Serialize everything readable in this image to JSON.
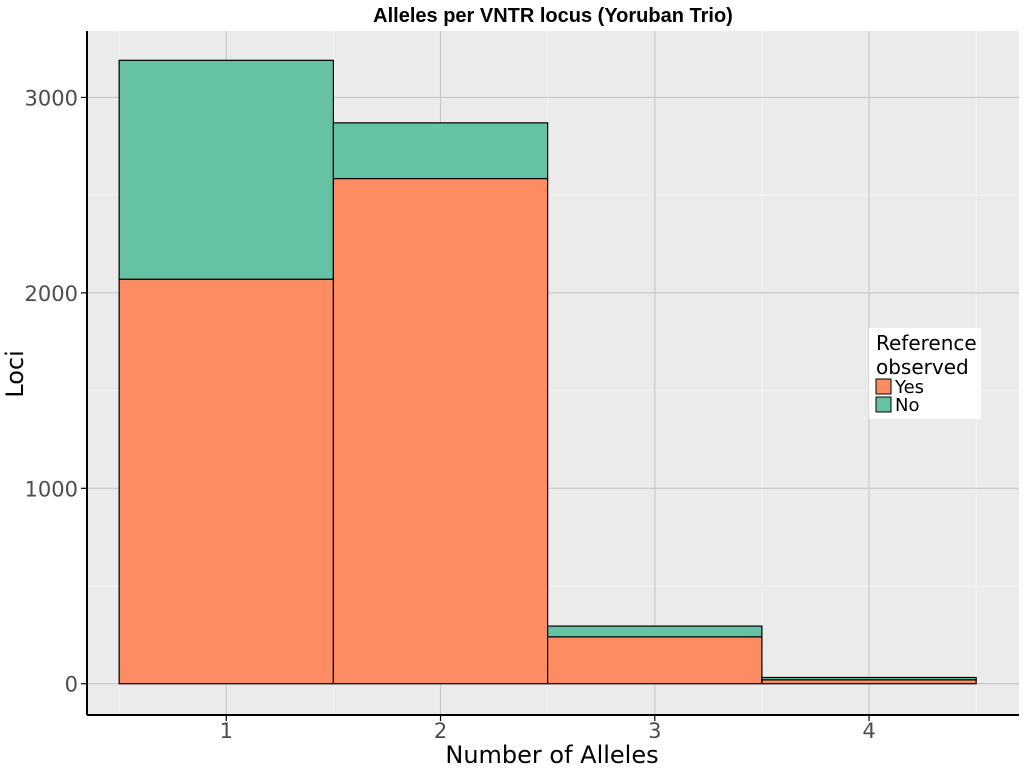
{
  "chart_data": {
    "type": "bar",
    "stacked": true,
    "title": "Alleles per VNTR locus (Yoruban Trio)",
    "xlabel": "Number of Alleles",
    "ylabel": "Loci",
    "categories": [
      "1",
      "2",
      "3",
      "4"
    ],
    "x_ticks": [
      "1",
      "2",
      "3",
      "4"
    ],
    "y_ticks": [
      "0",
      "1000",
      "2000",
      "3000"
    ],
    "xlim": [
      0.35,
      4.7
    ],
    "ylim": [
      -160,
      3340
    ],
    "grid": true,
    "legend": {
      "title_lines": [
        "Reference",
        "observed"
      ],
      "position": "right",
      "entries": [
        "Yes",
        "No"
      ]
    },
    "series": [
      {
        "name": "Yes",
        "color": "#fc8d62",
        "values": [
          2070,
          2585,
          240,
          20
        ]
      },
      {
        "name": "No",
        "color": "#66c2a5",
        "values": [
          1120,
          285,
          55,
          12
        ]
      }
    ],
    "colors": {
      "panel_bg": "#ebebeb",
      "grid_major": "#c8c8c8",
      "grid_minor": "#f4f4f4",
      "bar_outline": "#000000"
    }
  }
}
